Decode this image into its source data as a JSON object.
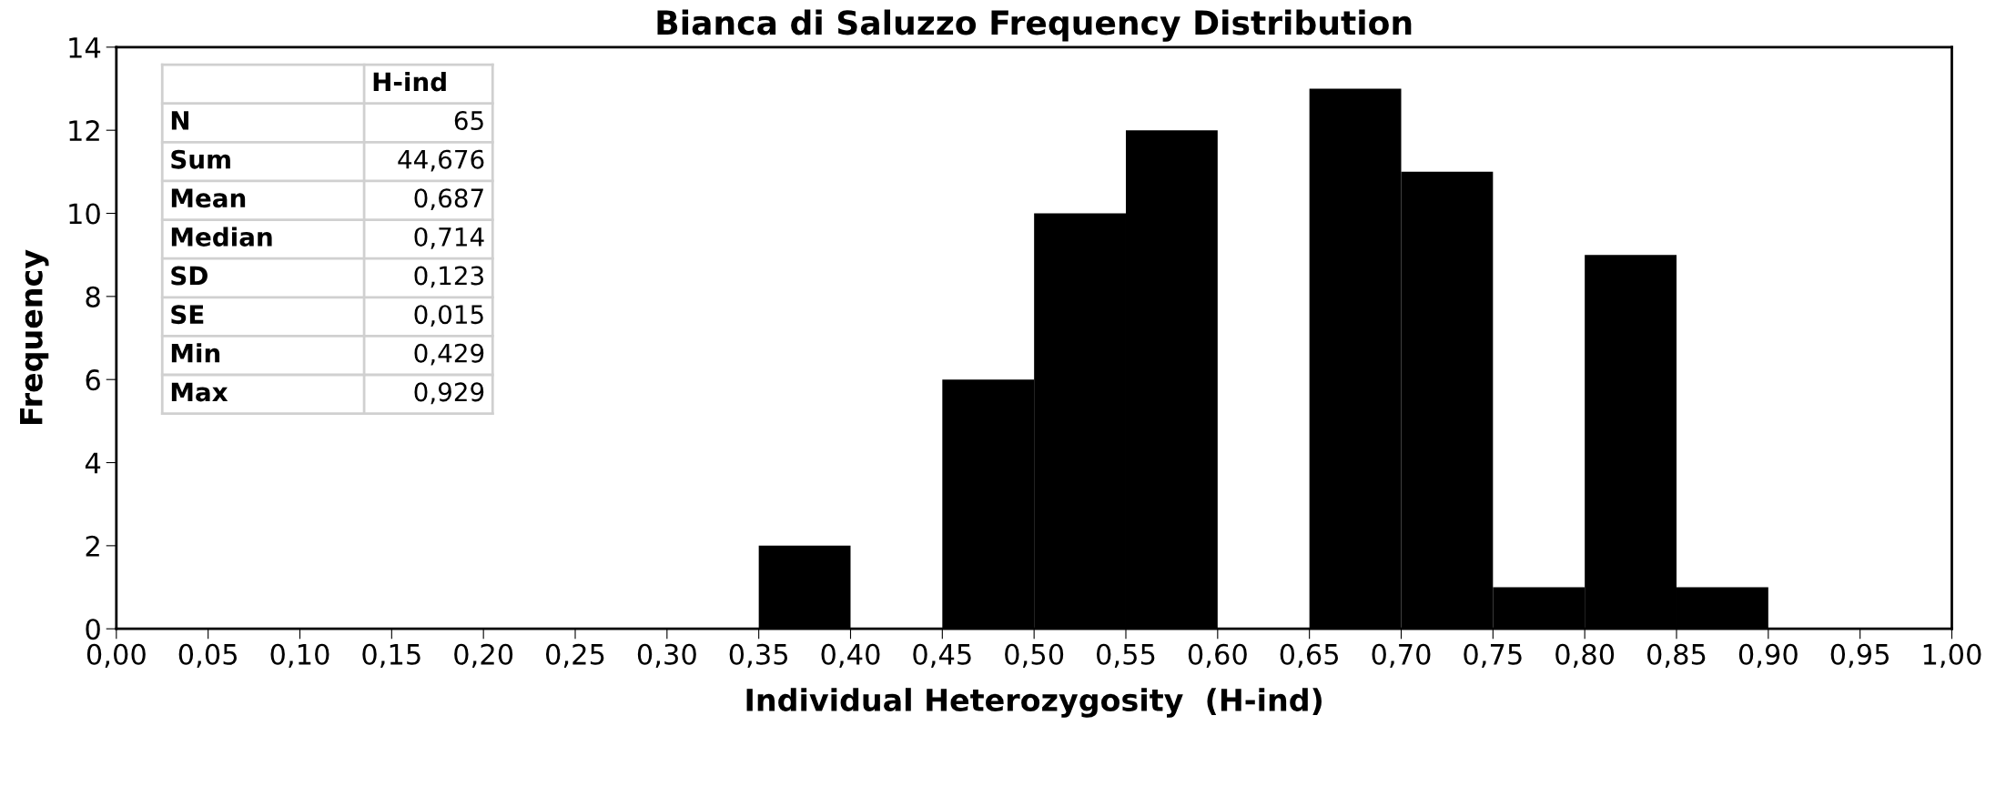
{
  "chart_data": {
    "type": "histogram",
    "title": "Bianca di Saluzzo Frequency Distribution",
    "xlabel": "Individual Heterozygosity  (H-ind)",
    "ylabel": "Frequency",
    "bins": [
      0.0,
      0.05,
      0.1,
      0.15,
      0.2,
      0.25,
      0.3,
      0.35,
      0.4,
      0.45,
      0.5,
      0.55,
      0.6,
      0.65,
      0.7,
      0.75,
      0.8,
      0.85,
      0.9,
      0.95,
      1.0
    ],
    "values": [
      0,
      0,
      0,
      0,
      0,
      0,
      0,
      2,
      0,
      6,
      10,
      12,
      0,
      13,
      11,
      1,
      9,
      1,
      0,
      0
    ],
    "color": "#000000",
    "xlim": [
      0,
      1.0
    ],
    "ylim": [
      0,
      14
    ],
    "yticks": [
      0,
      2,
      4,
      6,
      8,
      10,
      12,
      14
    ],
    "xticks": [
      {
        "value": 0.0,
        "label": "0,00"
      },
      {
        "value": 0.05,
        "label": "0,05"
      },
      {
        "value": 0.1,
        "label": "0,10"
      },
      {
        "value": 0.15,
        "label": "0,15"
      },
      {
        "value": 0.2,
        "label": "0,20"
      },
      {
        "value": 0.25,
        "label": "0,25"
      },
      {
        "value": 0.3,
        "label": "0,30"
      },
      {
        "value": 0.35,
        "label": "0,35"
      },
      {
        "value": 0.4,
        "label": "0,40"
      },
      {
        "value": 0.45,
        "label": "0,45"
      },
      {
        "value": 0.5,
        "label": "0,50"
      },
      {
        "value": 0.55,
        "label": "0,55"
      },
      {
        "value": 0.6,
        "label": "0,60"
      },
      {
        "value": 0.65,
        "label": "0,65"
      },
      {
        "value": 0.7,
        "label": "0,70"
      },
      {
        "value": 0.75,
        "label": "0,75"
      },
      {
        "value": 0.8,
        "label": "0,80"
      },
      {
        "value": 0.85,
        "label": "0,85"
      },
      {
        "value": 0.9,
        "label": "0,90"
      },
      {
        "value": 0.95,
        "label": "0,95"
      },
      {
        "value": 1.0,
        "label": "1,00"
      }
    ],
    "grid": false,
    "annotations": [
      "H-ind",
      "N",
      "65",
      "Sum",
      "44,676",
      "Mean",
      "0,687",
      "Median",
      "0,714",
      "SD",
      "0,123",
      "SE",
      "0,015",
      "Min",
      "0,429",
      "Max",
      "0,929"
    ]
  }
}
